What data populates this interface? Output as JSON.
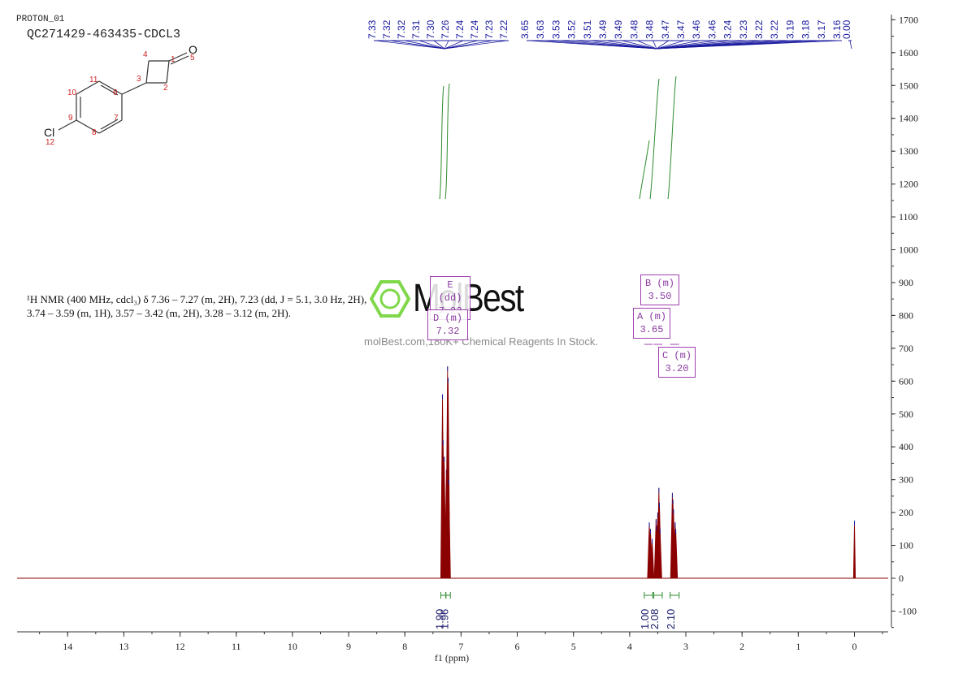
{
  "header": {
    "experiment": "PROTON_01",
    "sample": "QC271429-463435-CDCL3"
  },
  "structure": {
    "atom_labels": [
      "1",
      "2",
      "3",
      "4",
      "5",
      "6",
      "7",
      "8",
      "9",
      "10",
      "11",
      "12"
    ],
    "heteroatoms": {
      "oxygen": "O",
      "chlorine": "Cl"
    }
  },
  "description": {
    "line1": "¹H NMR (400 MHz, cdcl₃) δ 7.36 – 7.27 (m, 2H), 7.23 (dd, J = 5.1, 3.0 Hz, 2H),",
    "line2": "3.74 – 3.59 (m, 1H), 3.57 – 3.42 (m, 2H), 3.28 – 3.12 (m, 2H)."
  },
  "watermark": {
    "brand": "MolBest",
    "tagline": "molBest.com,180K+ Chemical Reagents In Stock."
  },
  "multiplets": [
    {
      "id": "E",
      "label": "E (dd)",
      "shift": "7.23"
    },
    {
      "id": "D",
      "label": "D (m)",
      "shift": "7.32"
    },
    {
      "id": "B",
      "label": "B (m)",
      "shift": "3.50"
    },
    {
      "id": "A",
      "label": "A (m)",
      "shift": "3.65"
    },
    {
      "id": "C",
      "label": "C (m)",
      "shift": "3.20"
    }
  ],
  "colors": {
    "spectrum": "#8b0000",
    "peak_marks": "#1a1aa0",
    "integral": "#2e8b2e",
    "multiplet_box": "#a040b0",
    "axis": "#333333"
  },
  "chart_data": {
    "type": "line",
    "xlabel": "f1 (ppm)",
    "x_ticks": [
      14,
      13,
      12,
      11,
      10,
      9,
      8,
      7,
      6,
      5,
      4,
      3,
      2,
      1,
      0
    ],
    "xlim": [
      14.9,
      -0.6
    ],
    "x_reversed": true,
    "ylim": [
      -150,
      1720
    ],
    "y_ticks": [
      1700,
      1600,
      1500,
      1400,
      1300,
      1200,
      1100,
      1000,
      900,
      800,
      700,
      600,
      500,
      400,
      300,
      200,
      100,
      0,
      -100
    ],
    "peaks": [
      {
        "shift": 7.33,
        "height": 560
      },
      {
        "shift": 7.32,
        "height": 420
      },
      {
        "shift": 7.3,
        "height": 370
      },
      {
        "shift": 7.26,
        "height": 330
      },
      {
        "shift": 7.24,
        "height": 645
      },
      {
        "shift": 7.23,
        "height": 610
      },
      {
        "shift": 7.22,
        "height": 300
      },
      {
        "shift": 3.65,
        "height": 170
      },
      {
        "shift": 3.63,
        "height": 150
      },
      {
        "shift": 3.6,
        "height": 120
      },
      {
        "shift": 3.53,
        "height": 180
      },
      {
        "shift": 3.52,
        "height": 160
      },
      {
        "shift": 3.5,
        "height": 200
      },
      {
        "shift": 3.48,
        "height": 275
      },
      {
        "shift": 3.47,
        "height": 230
      },
      {
        "shift": 3.46,
        "height": 150
      },
      {
        "shift": 3.24,
        "height": 260
      },
      {
        "shift": 3.23,
        "height": 240
      },
      {
        "shift": 3.22,
        "height": 210
      },
      {
        "shift": 3.19,
        "height": 170
      },
      {
        "shift": 3.18,
        "height": 150
      },
      {
        "shift": 0.0,
        "height": 175
      }
    ],
    "peak_labels": [
      "7.33",
      "7.32",
      "7.32",
      "7.31",
      "7.30",
      "7.26",
      "7.24",
      "7.24",
      "7.23",
      "7.22",
      "3.65",
      "3.63",
      "3.53",
      "3.52",
      "3.51",
      "3.49",
      "3.49",
      "3.48",
      "3.48",
      "3.47",
      "3.47",
      "3.46",
      "3.46",
      "3.24",
      "3.23",
      "3.22",
      "3.22",
      "3.19",
      "3.18",
      "3.17",
      "3.16",
      "0.00"
    ],
    "integrals": [
      {
        "from": 7.36,
        "to": 7.27,
        "value": "1.90"
      },
      {
        "from": 7.27,
        "to": 7.19,
        "value": "1.96"
      },
      {
        "from": 3.74,
        "to": 3.59,
        "value": "1.00"
      },
      {
        "from": 3.57,
        "to": 3.42,
        "value": "2.08"
      },
      {
        "from": 3.28,
        "to": 3.12,
        "value": "2.10"
      }
    ]
  }
}
